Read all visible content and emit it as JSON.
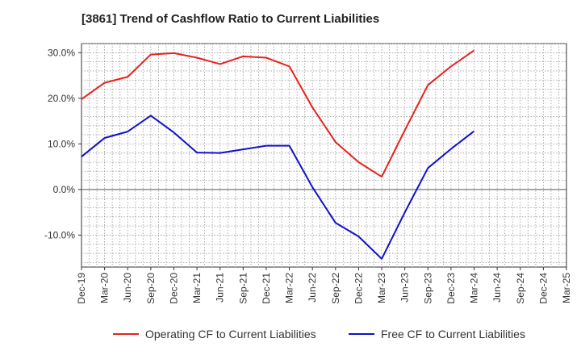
{
  "chart_data": {
    "type": "line",
    "title": "[3861]  Trend of Cashflow Ratio to Current Liabilities",
    "xlabel": "",
    "ylabel": "",
    "ylim": [
      -17,
      32
    ],
    "yticks": [
      30,
      20,
      10,
      0,
      -10
    ],
    "ytick_labels": [
      "30.0%",
      "20.0%",
      "10.0%",
      "0.0%",
      "-10.0%"
    ],
    "categories": [
      "Dec-19",
      "Mar-20",
      "Jun-20",
      "Sep-20",
      "Dec-20",
      "Mar-21",
      "Jun-21",
      "Sep-21",
      "Dec-21",
      "Mar-22",
      "Jun-22",
      "Sep-22",
      "Dec-22",
      "Mar-23",
      "Jun-23",
      "Sep-23",
      "Dec-23",
      "Mar-24",
      "Jun-24",
      "Sep-24",
      "Dec-24",
      "Mar-25"
    ],
    "grid": true,
    "legend_position": "bottom",
    "series": [
      {
        "name": "Operating CF to Current Liabilities",
        "color": "#e8211d",
        "values": [
          19.8,
          23.4,
          24.7,
          29.6,
          29.9,
          28.9,
          27.5,
          29.2,
          28.9,
          27.0,
          18.0,
          10.4,
          6.0,
          2.8,
          13.0,
          22.9,
          27.0,
          30.5,
          null,
          null,
          null,
          null
        ]
      },
      {
        "name": "Free CF to Current Liabilities",
        "color": "#1111cc",
        "values": [
          7.2,
          11.3,
          12.7,
          16.2,
          12.5,
          8.1,
          8.0,
          8.8,
          9.6,
          9.6,
          0.5,
          -7.3,
          -10.3,
          -15.2,
          -5.0,
          4.7,
          8.9,
          12.8,
          null,
          null,
          null,
          null
        ]
      }
    ]
  }
}
